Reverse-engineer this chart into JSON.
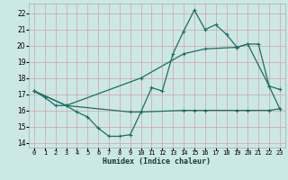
{
  "xlabel": "Humidex (Indice chaleur)",
  "bg_color": "#cce8e4",
  "grid_color": "#b8d8d4",
  "line_color": "#1a6e64",
  "xticks": [
    0,
    1,
    2,
    3,
    4,
    5,
    6,
    7,
    8,
    9,
    10,
    11,
    12,
    13,
    14,
    15,
    16,
    17,
    18,
    19,
    20,
    21,
    22,
    23
  ],
  "yticks": [
    14,
    15,
    16,
    17,
    18,
    19,
    20,
    21,
    22
  ],
  "line1_x": [
    0,
    1,
    2,
    3,
    4,
    5,
    6,
    7,
    8,
    9,
    10,
    11,
    12,
    13,
    14,
    15,
    16,
    17,
    18,
    19,
    20,
    21,
    22,
    23
  ],
  "line1_y": [
    17.2,
    16.8,
    16.3,
    16.3,
    15.9,
    15.6,
    14.9,
    14.4,
    14.4,
    14.5,
    15.9,
    17.4,
    17.2,
    19.5,
    20.9,
    22.2,
    21.0,
    21.3,
    20.7,
    19.9,
    20.1,
    20.1,
    17.5,
    17.3
  ],
  "line2_x": [
    0,
    3,
    10,
    14,
    16,
    19,
    20,
    22,
    23
  ],
  "line2_y": [
    17.2,
    16.3,
    18.0,
    19.5,
    19.8,
    19.9,
    20.1,
    17.5,
    16.1
  ],
  "line3_x": [
    0,
    3,
    9,
    10,
    14,
    15,
    16,
    19,
    20,
    22,
    23
  ],
  "line3_y": [
    17.2,
    16.3,
    15.9,
    15.9,
    16.0,
    16.0,
    16.0,
    16.0,
    16.0,
    16.0,
    16.1
  ]
}
